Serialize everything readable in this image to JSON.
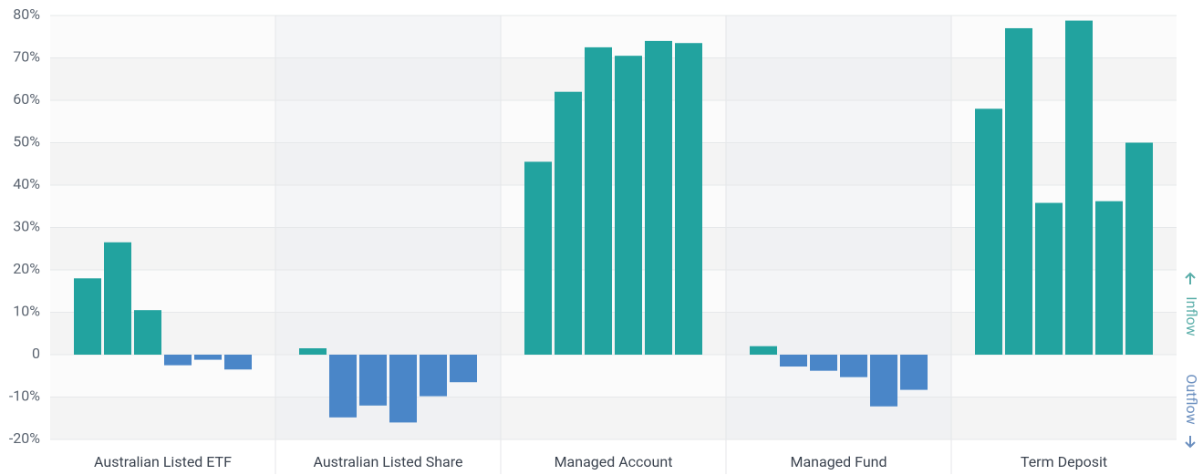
{
  "chart_data": {
    "type": "bar",
    "categories": [
      "Australian Listed ETF",
      "Australian Listed Share",
      "Managed Account",
      "Managed Fund",
      "Term Deposit"
    ],
    "values": [
      [
        18,
        26.5,
        10.5,
        -2.5,
        -1.2,
        -3.5
      ],
      [
        1.5,
        -14.8,
        -12,
        -16,
        -9.8,
        -6.5
      ],
      [
        45.5,
        62,
        72.5,
        70.5,
        74,
        73.5
      ],
      [
        2,
        -2.8,
        -3.8,
        -5.3,
        -12.2,
        -8.3
      ],
      [
        58,
        77,
        35.8,
        78.8,
        36.2,
        50
      ]
    ],
    "positive_color": "#22a39f",
    "negative_color": "#4a86c8",
    "ylim": [
      -20,
      80
    ],
    "yticks": [
      {
        "value": -20,
        "label": "-20%"
      },
      {
        "value": -10,
        "label": "-10%"
      },
      0,
      {
        "value": 10,
        "label": "10%"
      },
      {
        "value": 20,
        "label": "20%"
      },
      {
        "value": 30,
        "label": "30%"
      },
      {
        "value": 40,
        "label": "40%"
      },
      {
        "value": 50,
        "label": "50%"
      },
      {
        "value": 60,
        "label": "60%"
      },
      {
        "value": 70,
        "label": "70%"
      },
      {
        "value": 80,
        "label": "80%"
      }
    ],
    "grid": true,
    "annotations": {
      "up": "Inflow",
      "down": "Outflow"
    }
  }
}
